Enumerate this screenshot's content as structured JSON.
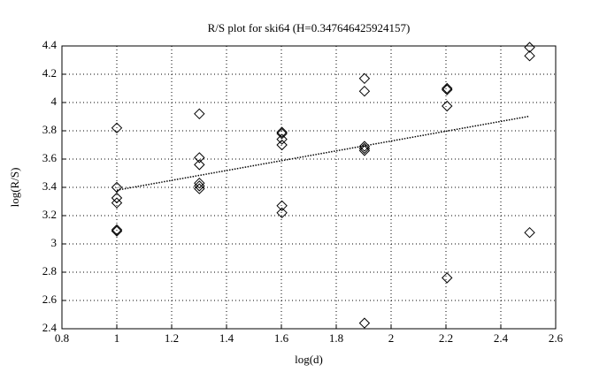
{
  "chart_data": {
    "type": "scatter",
    "title": "R/S plot for ski64 (H=0.347646425924157)",
    "x_label": "log(d)",
    "y_label": "log(R/S)",
    "xlim": [
      0.8,
      2.6
    ],
    "xticks": [
      0.8,
      1,
      1.2,
      1.4,
      1.6,
      1.8,
      2,
      2.2,
      2.4,
      2.6
    ],
    "ylim": [
      2.4,
      4.4
    ],
    "yticks": [
      2.4,
      2.6,
      2.8,
      3,
      3.2,
      3.4,
      3.6,
      3.8,
      4,
      4.2,
      4.4
    ],
    "grid": true,
    "series": [
      {
        "mode": "markers",
        "marker": "diamond",
        "color": "#000000",
        "x": [
          1,
          1,
          1,
          1,
          1,
          1,
          1.301,
          1.301,
          1.301,
          1.301,
          1.301,
          1.301,
          1.602,
          1.602,
          1.602,
          1.602,
          1.602,
          1.602,
          1.903,
          1.903,
          1.903,
          1.903,
          1.903,
          1.903,
          2.204,
          2.204,
          2.204,
          2.204,
          2.505,
          2.505,
          2.505
        ],
        "values": [
          3.82,
          3.4,
          3.325,
          3.29,
          3.1,
          3.09,
          3.92,
          3.61,
          3.56,
          3.43,
          3.41,
          3.39,
          3.79,
          3.78,
          3.74,
          3.7,
          3.27,
          3.22,
          4.17,
          4.08,
          3.69,
          3.675,
          3.66,
          2.44,
          4.1,
          4.09,
          3.975,
          2.76,
          4.39,
          4.33,
          3.08
        ]
      },
      {
        "mode": "line",
        "style": "dotted",
        "color": "#000000",
        "x": [
          1,
          2.505
        ],
        "values": [
          3.38,
          3.903
        ]
      }
    ]
  }
}
